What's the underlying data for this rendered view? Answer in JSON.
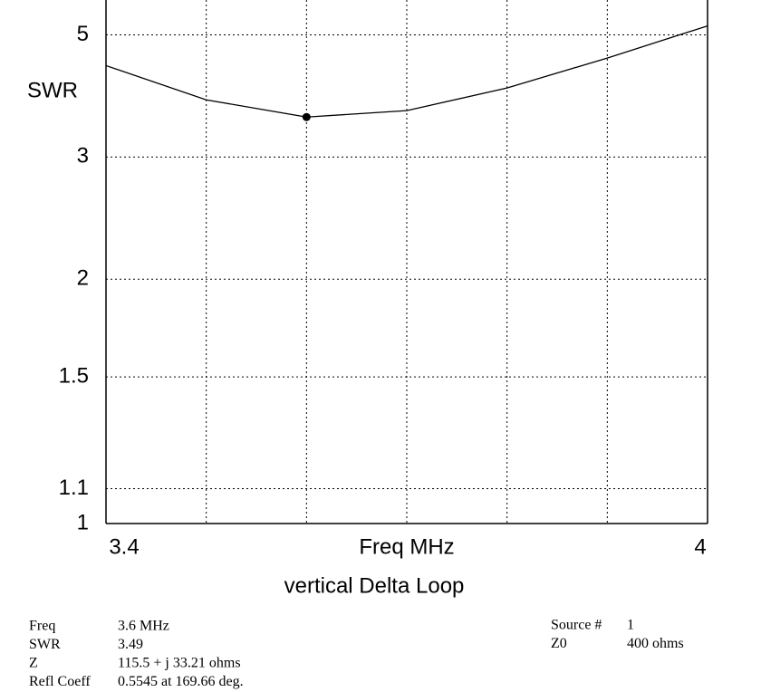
{
  "chart_data": {
    "type": "line",
    "title": "vertical Delta Loop",
    "y_label": "SWR",
    "x_label": "Freq MHz",
    "y_scale": "reflection",
    "x": [
      3.4,
      3.5,
      3.6,
      3.7,
      3.8,
      3.9,
      4.0
    ],
    "series": [
      {
        "name": "SWR",
        "color": "#000000",
        "values": [
          4.33,
          3.74,
          3.49,
          3.58,
          3.93,
          4.48,
          5.23
        ]
      }
    ],
    "marker": {
      "x": 3.6,
      "y": 3.49
    },
    "xlim": [
      3.4,
      4
    ],
    "xticks": [
      3.4,
      4
    ],
    "xgrid": [
      3.5,
      3.6,
      3.7,
      3.8,
      3.9
    ],
    "ylim": [
      1,
      6
    ],
    "yticks": [
      1,
      1.1,
      1.5,
      2,
      3,
      5
    ],
    "grid": true
  },
  "readout": {
    "rows": [
      [
        "Freq",
        "3.6 MHz"
      ],
      [
        "SWR",
        "3.49"
      ],
      [
        "Z",
        "115.5 + j 33.21 ohms"
      ],
      [
        "Refl Coeff",
        "0.5545 at 169.66 deg."
      ]
    ]
  },
  "source": {
    "rows": [
      [
        "Source #",
        "1"
      ],
      [
        "Z0",
        "400 ohms"
      ]
    ]
  }
}
